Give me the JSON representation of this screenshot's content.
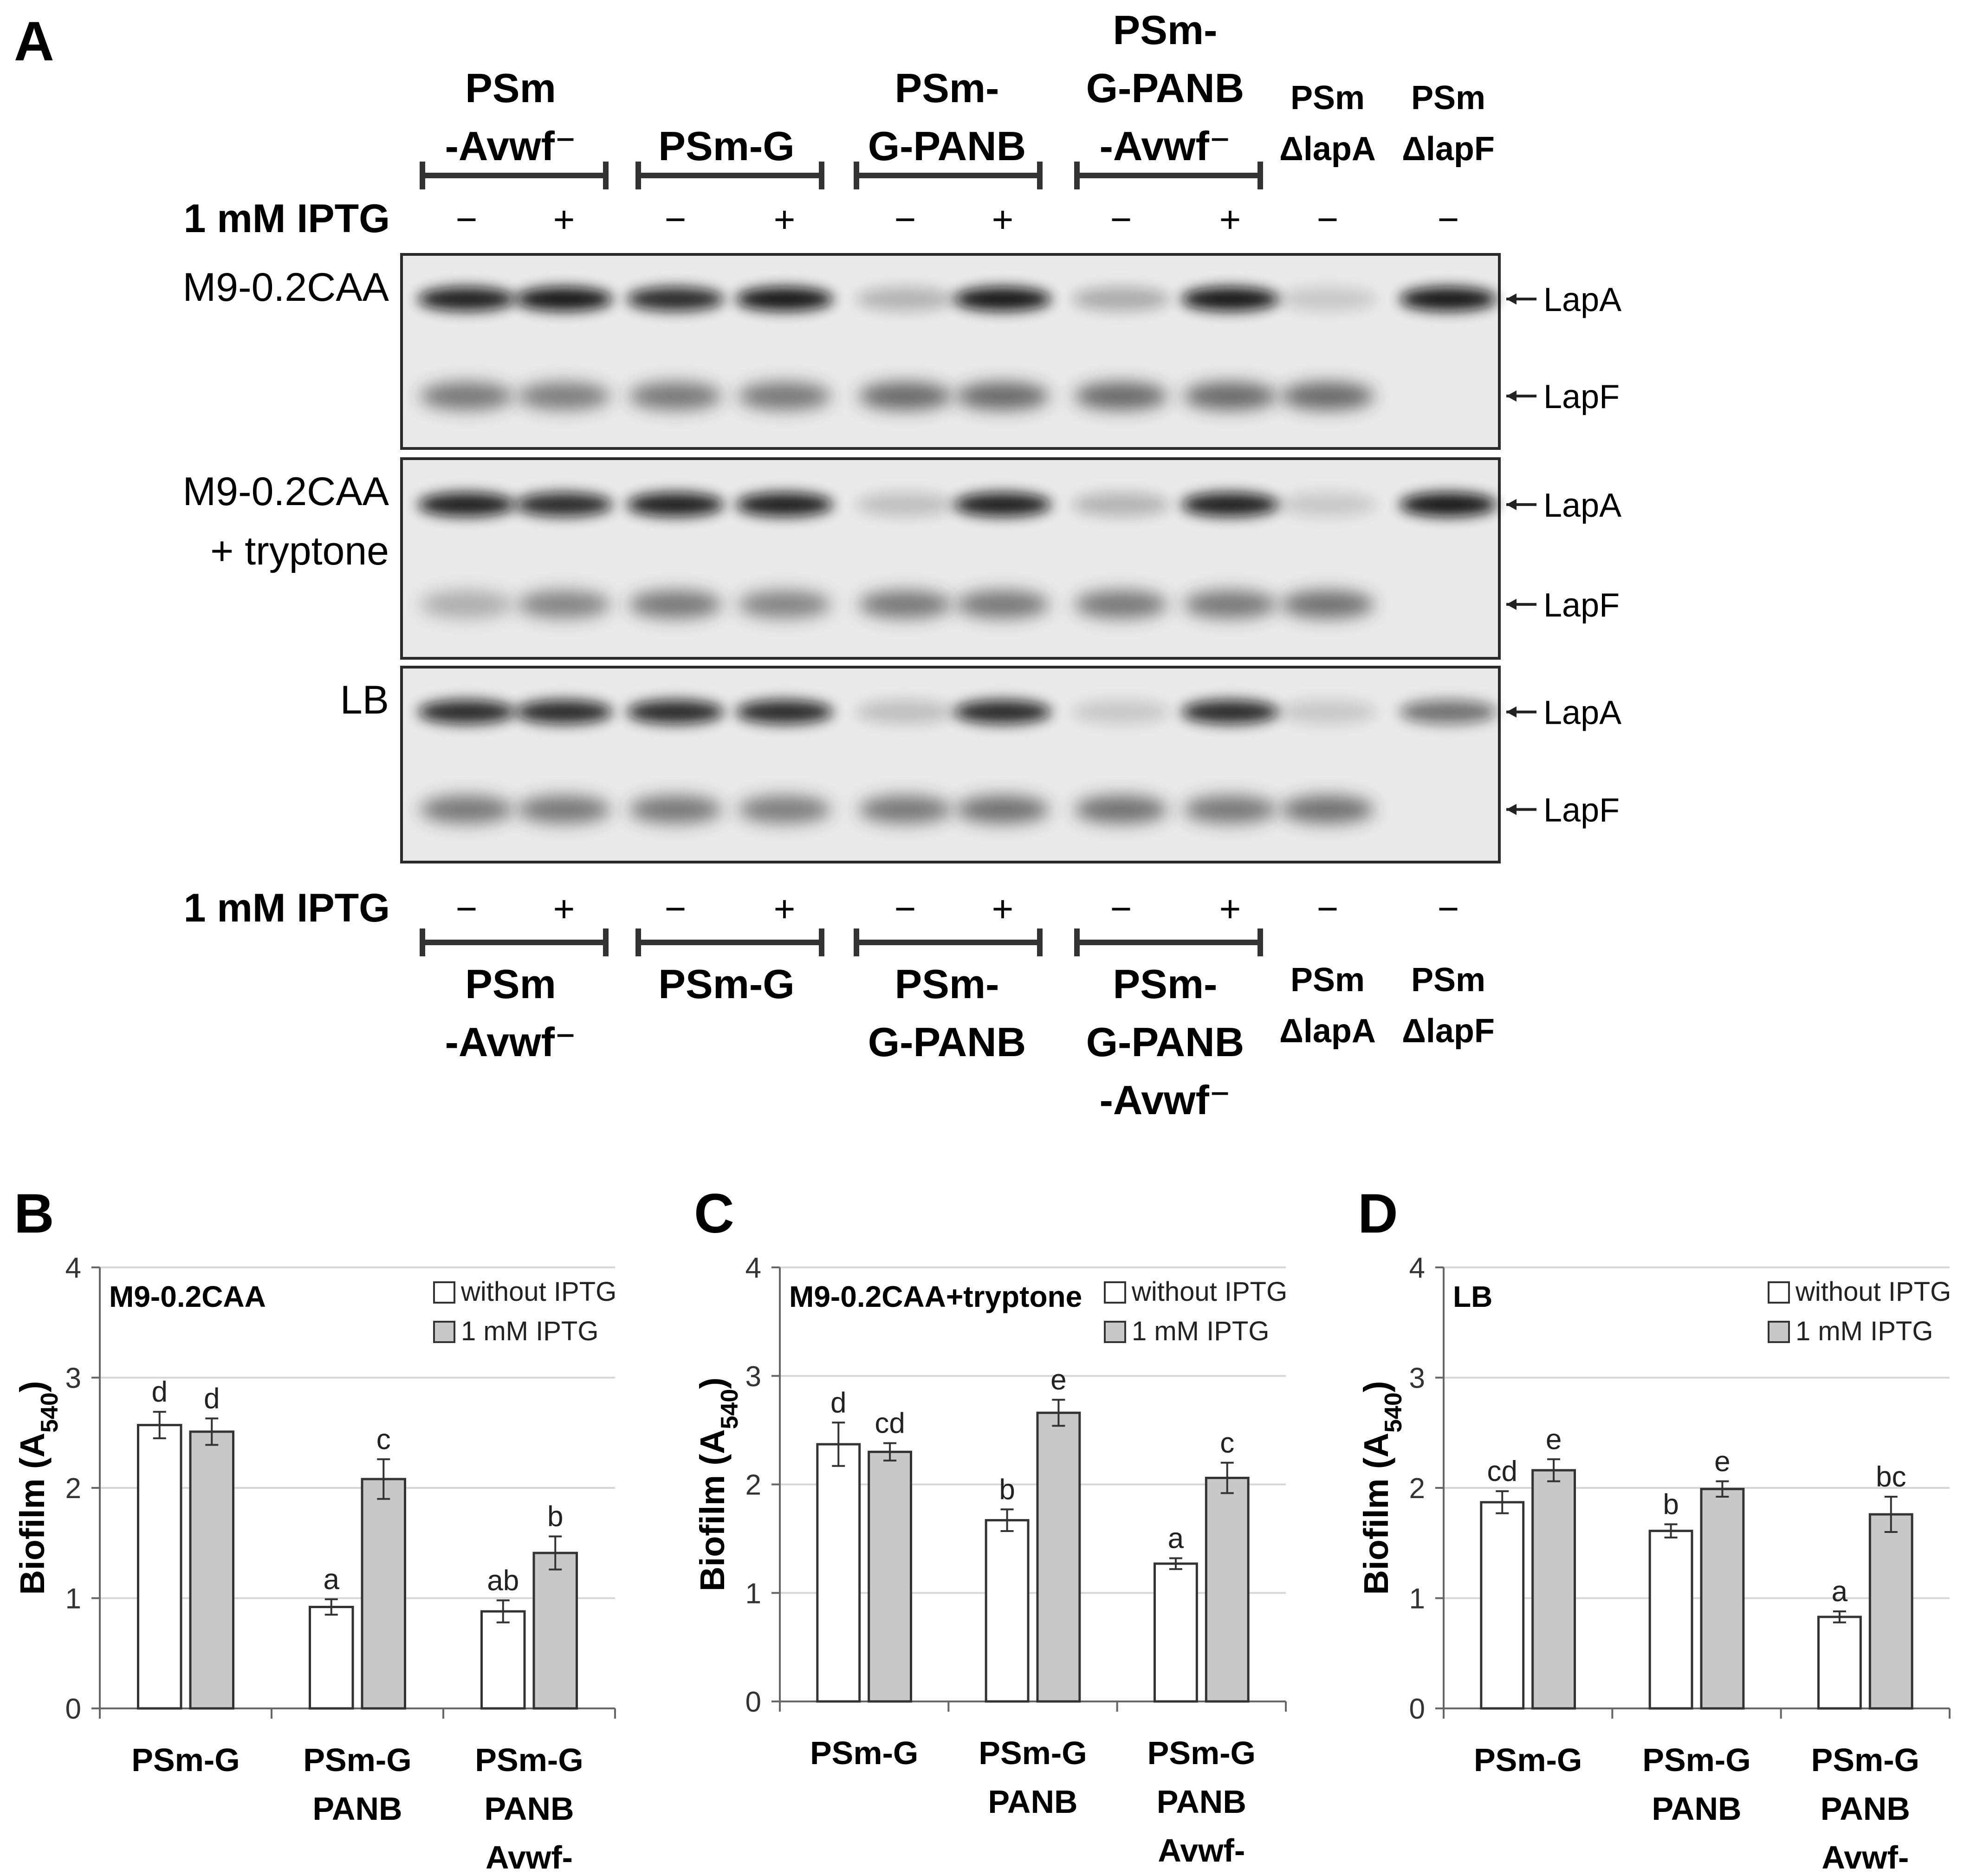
{
  "panel_a": {
    "label": "A",
    "top_groups": [
      {
        "lines": [
          "PSm",
          "-Avwf⁻"
        ],
        "bracket": true
      },
      {
        "lines": [
          "PSm-G"
        ],
        "bracket": true
      },
      {
        "lines": [
          "PSm-",
          "G-PANB"
        ],
        "bracket": true
      },
      {
        "lines": [
          "PSm-",
          "G-PANB",
          "-Avwf⁻"
        ],
        "bracket": true
      },
      {
        "lines": [
          "PSm",
          "ΔlapA"
        ],
        "bracket": false
      },
      {
        "lines": [
          "PSm",
          "ΔlapF"
        ],
        "bracket": false
      }
    ],
    "bottom_groups": [
      {
        "lines": [
          "PSm",
          "-Avwf⁻"
        ],
        "bracket": true
      },
      {
        "lines": [
          "PSm-G"
        ],
        "bracket": true
      },
      {
        "lines": [
          "PSm-",
          "G-PANB"
        ],
        "bracket": true
      },
      {
        "lines": [
          "PSm-",
          "G-PANB",
          "-Avwf⁻"
        ],
        "bracket": true
      },
      {
        "lines": [
          "PSm",
          "ΔlapA"
        ],
        "bracket": false
      },
      {
        "lines": [
          "PSm",
          "ΔlapF"
        ],
        "bracket": false
      }
    ],
    "iptg_label": "1 mM IPTG",
    "iptg_signs": [
      "−",
      "+",
      "−",
      "+",
      "−",
      "+",
      "−",
      "+",
      "−",
      "−"
    ],
    "blots": [
      {
        "condition": [
          "M9-0.2CAA"
        ],
        "band_labels": [
          "LapA",
          "LapF"
        ],
        "lapa_intensity": [
          0.95,
          1.0,
          0.9,
          1.0,
          0.15,
          1.0,
          0.2,
          1.0,
          0.05,
          1.0
        ],
        "lapf_intensity": [
          0.7,
          0.65,
          0.7,
          0.7,
          0.8,
          0.8,
          0.8,
          0.8,
          0.8,
          0.0
        ]
      },
      {
        "condition": [
          "M9-0.2CAA",
          "+ tryptone"
        ],
        "band_labels": [
          "LapA",
          "LapF"
        ],
        "lapa_intensity": [
          0.95,
          0.9,
          0.95,
          0.95,
          0.1,
          0.95,
          0.15,
          0.95,
          0.05,
          1.0
        ],
        "lapf_intensity": [
          0.3,
          0.6,
          0.7,
          0.6,
          0.7,
          0.7,
          0.7,
          0.7,
          0.75,
          0.0
        ]
      },
      {
        "condition": [
          "LB"
        ],
        "band_labels": [
          "LapA",
          "LapF"
        ],
        "lapa_intensity": [
          0.9,
          0.9,
          0.9,
          0.9,
          0.1,
          0.9,
          0.05,
          0.9,
          0.05,
          0.5
        ],
        "lapf_intensity": [
          0.7,
          0.7,
          0.7,
          0.65,
          0.7,
          0.75,
          0.75,
          0.7,
          0.75,
          0.0
        ]
      }
    ]
  },
  "chart_data": [
    {
      "panel": "B",
      "type": "bar",
      "title": "M9-0.2CAA",
      "ylabel": "Biofilm (A540)",
      "ylim": [
        0,
        4
      ],
      "yticks": [
        "0",
        "1",
        "2",
        "3",
        "4"
      ],
      "grid": true,
      "legend_placement": "top-right",
      "categories": [
        [
          "PSm-G"
        ],
        [
          "PSm-G",
          "PANB"
        ],
        [
          "PSm-G",
          "PANB",
          "Avwf-"
        ]
      ],
      "series": [
        {
          "name": "without IPTG",
          "color": "#ffffff",
          "values": [
            2.57,
            0.92,
            0.88
          ],
          "errors": [
            0.12,
            0.07,
            0.1
          ],
          "letters": [
            "d",
            "a",
            "ab"
          ]
        },
        {
          "name": "1 mM IPTG",
          "color": "#c8c8c8",
          "values": [
            2.51,
            2.08,
            1.41
          ],
          "errors": [
            0.12,
            0.18,
            0.15
          ],
          "letters": [
            "d",
            "c",
            "b"
          ]
        }
      ]
    },
    {
      "panel": "C",
      "type": "bar",
      "title": "M9-0.2CAA+tryptone",
      "ylabel": "Biofilm (A540)",
      "ylim": [
        0,
        4
      ],
      "yticks": [
        "0",
        "1",
        "2",
        "3",
        "4"
      ],
      "grid": true,
      "legend_placement": "top-right",
      "categories": [
        [
          "PSm-G"
        ],
        [
          "PSm-G",
          "PANB"
        ],
        [
          "PSm-G",
          "PANB",
          "Avwf-"
        ]
      ],
      "series": [
        {
          "name": "without IPTG",
          "color": "#ffffff",
          "values": [
            2.37,
            1.67,
            1.27
          ],
          "errors": [
            0.2,
            0.1,
            0.05
          ],
          "letters": [
            "d",
            "b",
            "a"
          ]
        },
        {
          "name": "1 mM IPTG",
          "color": "#c8c8c8",
          "values": [
            2.3,
            2.66,
            2.06
          ],
          "errors": [
            0.08,
            0.12,
            0.14
          ],
          "letters": [
            "cd",
            "e",
            "c"
          ]
        }
      ]
    },
    {
      "panel": "D",
      "type": "bar",
      "title": "LB",
      "ylabel": "Biofilm (A540)",
      "ylim": [
        0,
        4
      ],
      "yticks": [
        "0",
        "1",
        "2",
        "3",
        "4"
      ],
      "grid": true,
      "legend_placement": "top-right",
      "categories": [
        [
          "PSm-G"
        ],
        [
          "PSm-G",
          "PANB"
        ],
        [
          "PSm-G",
          "PANB",
          "Avwf-"
        ]
      ],
      "series": [
        {
          "name": "without IPTG",
          "color": "#ffffff",
          "values": [
            1.87,
            1.61,
            0.83
          ],
          "errors": [
            0.1,
            0.06,
            0.05
          ],
          "letters": [
            "cd",
            "b",
            "a"
          ]
        },
        {
          "name": "1 mM IPTG",
          "color": "#c8c8c8",
          "values": [
            2.16,
            1.99,
            1.76
          ],
          "errors": [
            0.1,
            0.07,
            0.16
          ],
          "letters": [
            "e",
            "e",
            "bc"
          ]
        }
      ]
    }
  ]
}
